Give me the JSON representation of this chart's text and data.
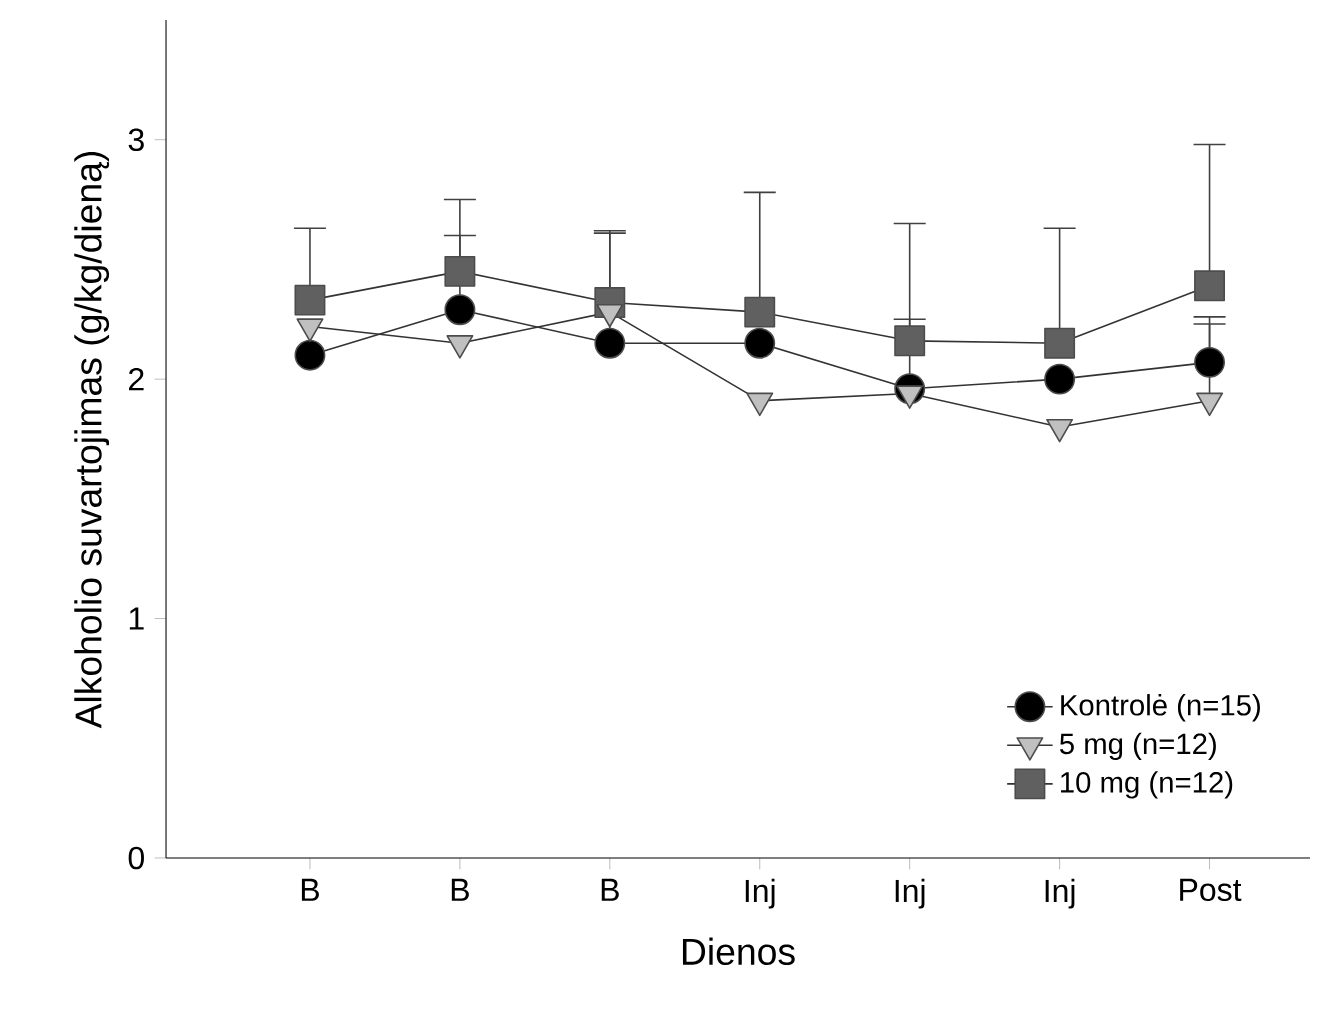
{
  "chart_data": {
    "type": "line",
    "xlabel": "Dienos",
    "ylabel": "Alkoholio suvartojimas (g/kg/dieną)",
    "categories": [
      "B",
      "B",
      "B",
      "Inj",
      "Inj",
      "Inj",
      "Post"
    ],
    "ylim": [
      0,
      3.5
    ],
    "yticks": [
      0,
      1,
      2,
      3
    ],
    "legend": "bottom right",
    "grid": false,
    "series": [
      {
        "name": "Kontrolė (n=15)",
        "color": "#000000",
        "marker": "circle",
        "values": [
          2.1,
          2.29,
          2.15,
          2.15,
          1.96,
          2.0,
          2.07
        ],
        "errors": [
          null,
          [
            2.29,
            2.6
          ],
          [
            2.15,
            2.61
          ],
          null,
          [
            1.96,
            2.25
          ],
          null,
          [
            2.07,
            2.26
          ]
        ]
      },
      {
        "name": "5 mg (n=12)",
        "color": "#c0c0c0",
        "marker": "triangle",
        "values": [
          2.22,
          2.15,
          2.28,
          1.91,
          1.94,
          1.8,
          1.91
        ],
        "errors": [
          null,
          null,
          null,
          null,
          null,
          null,
          [
            1.91,
            2.23
          ]
        ]
      },
      {
        "name": "10 mg (n=12)",
        "color": "#606060",
        "marker": "square",
        "values": [
          2.33,
          2.45,
          2.32,
          2.28,
          2.16,
          2.15,
          2.39
        ],
        "errors": [
          [
            2.33,
            2.63
          ],
          [
            2.45,
            2.75
          ],
          [
            2.32,
            2.62
          ],
          [
            2.28,
            2.78
          ],
          [
            2.16,
            2.65
          ],
          [
            2.15,
            2.63
          ],
          [
            2.39,
            2.98
          ]
        ]
      }
    ]
  }
}
